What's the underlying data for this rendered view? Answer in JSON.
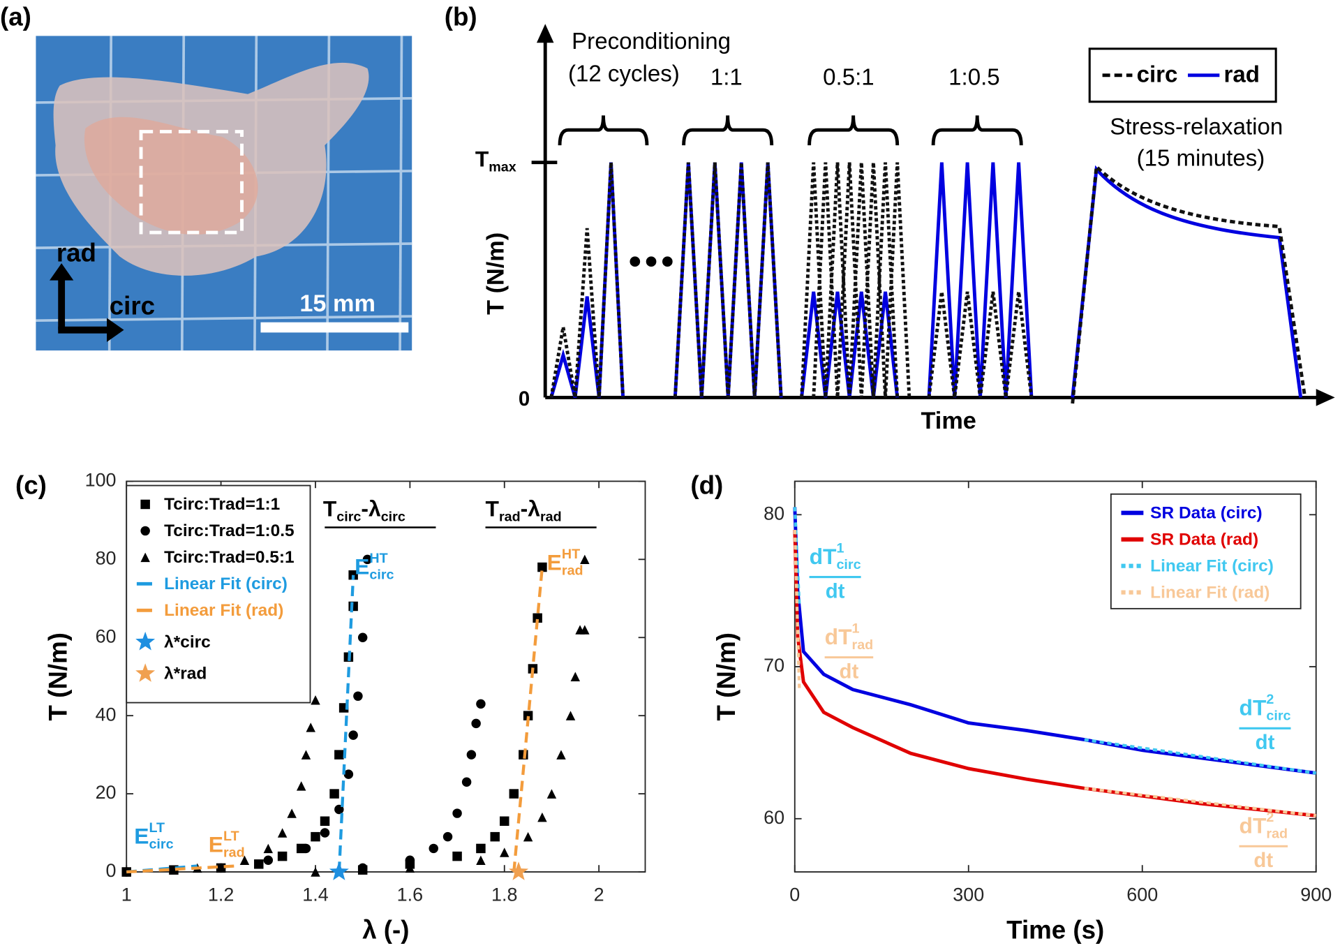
{
  "figure": {
    "a": {
      "label": "(a)",
      "rad": "rad",
      "circ": "circ",
      "scale": "15 mm"
    },
    "b": {
      "label": "(b)",
      "y_label": "T (N/m)",
      "x_label": "Time",
      "y_max": [
        [
          "T",
          ""
        ],
        [
          "max",
          "sub"
        ]
      ],
      "zero": "0",
      "groups": [
        [
          "Preconditioning",
          "(12 cycles)"
        ],
        [
          "1:1"
        ],
        [
          "0.5:1"
        ],
        [
          "1:0.5"
        ],
        [
          "Stress-relaxation",
          "(15 minutes)"
        ]
      ],
      "legend": [
        "circ",
        "rad"
      ]
    }
  },
  "chart_data": [
    {
      "type": "scatter",
      "panel_label": "(c)",
      "x_label": "λ (-)",
      "y_label": "T (N/m)",
      "xlim": [
        1,
        2.098
      ],
      "ylim": [
        0,
        100
      ],
      "xticks": [
        1,
        1.2,
        1.4,
        1.6,
        1.8,
        2
      ],
      "yticks": [
        0,
        20,
        40,
        60,
        80,
        100
      ],
      "series": [
        {
          "name": "Tcirc:Trad=1:1",
          "marker": "square",
          "color": "#000000",
          "x": [
            1.0,
            1.1,
            1.2,
            1.28,
            1.33,
            1.37,
            1.4,
            1.42,
            1.44,
            1.45,
            1.46,
            1.47,
            1.48,
            1.48,
            1.5,
            1.6,
            1.7,
            1.75,
            1.78,
            1.8,
            1.82,
            1.84,
            1.85,
            1.86,
            1.87,
            1.88
          ],
          "values": [
            0,
            0.5,
            1,
            2,
            4,
            6,
            9,
            13,
            20,
            30,
            42,
            55,
            68,
            76,
            0.5,
            2,
            4,
            6,
            9,
            13,
            20,
            30,
            40,
            52,
            65,
            78
          ]
        },
        {
          "name": "Tcirc:Trad=1:0.5",
          "marker": "circle",
          "color": "#000000",
          "x": [
            1.0,
            1.2,
            1.3,
            1.38,
            1.42,
            1.45,
            1.47,
            1.48,
            1.49,
            1.5,
            1.51,
            1.5,
            1.6,
            1.65,
            1.68,
            1.7,
            1.72,
            1.73,
            1.74,
            1.75
          ],
          "values": [
            0,
            1,
            3,
            6,
            10,
            16,
            25,
            35,
            45,
            60,
            80,
            1,
            3,
            6,
            9,
            15,
            23,
            30,
            38,
            43
          ]
        },
        {
          "name": "Tcirc:Trad=0.5:1",
          "marker": "triangle",
          "color": "#000000",
          "x": [
            1.0,
            1.15,
            1.25,
            1.3,
            1.33,
            1.35,
            1.37,
            1.38,
            1.39,
            1.4,
            1.4,
            1.6,
            1.75,
            1.8,
            1.85,
            1.88,
            1.9,
            1.92,
            1.94,
            1.95,
            1.96,
            1.97,
            1.97
          ],
          "values": [
            0,
            1,
            3,
            6,
            10,
            15,
            22,
            30,
            37,
            44,
            0,
            1,
            3,
            5,
            9,
            14,
            20,
            30,
            40,
            50,
            62,
            80,
            62
          ]
        },
        {
          "name": "Linear Fit (circ)",
          "line_style": "dashed",
          "color": "#1e9be0",
          "x": [
            1,
            1.15,
            null,
            1.45,
            1.48
          ],
          "values": [
            0,
            1.5,
            null,
            0,
            76
          ]
        },
        {
          "name": "Linear Fit (rad)",
          "line_style": "dashed",
          "color": "#f39c3c",
          "x": [
            1,
            1.23,
            null,
            1.82,
            1.88
          ],
          "values": [
            0,
            1.5,
            null,
            0,
            78
          ]
        },
        {
          "name": "λ*circ",
          "marker": "star",
          "color": "#1e8fe0",
          "x": [
            1.45
          ],
          "values": [
            0
          ]
        },
        {
          "name": "λ*rad",
          "marker": "star",
          "color": "#f0a050",
          "x": [
            1.83
          ],
          "values": [
            0
          ]
        }
      ],
      "annotations": [
        {
          "parts": [
            [
              "T",
              ""
            ],
            [
              "circ",
              "sub"
            ],
            [
              "-λ",
              ""
            ],
            [
              "circ",
              "sub"
            ]
          ],
          "color": "#000000"
        },
        {
          "parts": [
            [
              "T",
              ""
            ],
            [
              "rad",
              "sub"
            ],
            [
              "-λ",
              ""
            ],
            [
              "rad",
              "sub"
            ]
          ],
          "color": "#000000"
        },
        {
          "parts": [
            [
              "E",
              ""
            ],
            [
              "HT",
              "sup"
            ],
            [
              "circ",
              "sub"
            ]
          ],
          "color": "#1e9be0"
        },
        {
          "parts": [
            [
              "E",
              ""
            ],
            [
              "HT",
              "sup"
            ],
            [
              "rad",
              "sub"
            ]
          ],
          "color": "#f39c3c"
        },
        {
          "parts": [
            [
              "E",
              ""
            ],
            [
              "LT",
              "sup"
            ],
            [
              "circ",
              "sub"
            ]
          ],
          "color": "#1e9be0"
        },
        {
          "parts": [
            [
              "E",
              ""
            ],
            [
              "LT",
              "sup"
            ],
            [
              "rad",
              "sub"
            ]
          ],
          "color": "#f39c3c"
        }
      ]
    },
    {
      "type": "line",
      "panel_label": "(d)",
      "x_label": "Time (s)",
      "y_label": "T (N/m)",
      "xlim": [
        0,
        900
      ],
      "ylim": [
        56.5,
        82.2
      ],
      "xticks": [
        0,
        300,
        600,
        900
      ],
      "yticks": [
        60,
        70,
        80
      ],
      "series": [
        {
          "name": "SR Data (circ)",
          "line_style": "solid",
          "color": "#0000e0",
          "x": [
            0,
            5,
            15,
            50,
            100,
            200,
            300,
            400,
            500,
            600,
            700,
            800,
            900
          ],
          "values": [
            80.5,
            75,
            71,
            69.5,
            68.5,
            67.5,
            66.3,
            65.8,
            65.2,
            64.5,
            64,
            63.5,
            63
          ]
        },
        {
          "name": "SR Data (rad)",
          "line_style": "solid",
          "color": "#e00000",
          "x": [
            0,
            5,
            15,
            50,
            100,
            200,
            300,
            400,
            500,
            600,
            700,
            800,
            900
          ],
          "values": [
            79,
            72,
            69,
            67,
            66,
            64.3,
            63.3,
            62.6,
            62,
            61.5,
            61,
            60.6,
            60.2
          ]
        },
        {
          "name": "Linear Fit (circ)",
          "line_style": "dotted",
          "color": "#40c8f0",
          "x": [
            0,
            8,
            null,
            500,
            900
          ],
          "values": [
            80.5,
            74,
            null,
            65.2,
            63
          ]
        },
        {
          "name": "Linear Fit (rad)",
          "line_style": "dotted",
          "color": "#f8c898",
          "x": [
            0,
            8,
            null,
            500,
            900
          ],
          "values": [
            79,
            68.5,
            null,
            62,
            60.2
          ]
        }
      ],
      "annotations": [
        {
          "parts": [
            [
              "dT",
              ""
            ],
            [
              "1",
              "sup"
            ],
            [
              "circ",
              "sub"
            ]
          ],
          "den": "dt",
          "color": "#40c8f0"
        },
        {
          "parts": [
            [
              "dT",
              ""
            ],
            [
              "1",
              "sup"
            ],
            [
              "rad",
              "sub"
            ]
          ],
          "den": "dt",
          "color": "#f8c898"
        },
        {
          "parts": [
            [
              "dT",
              ""
            ],
            [
              "2",
              "sup"
            ],
            [
              "circ",
              "sub"
            ]
          ],
          "den": "dt",
          "color": "#40c8f0"
        },
        {
          "parts": [
            [
              "dT",
              ""
            ],
            [
              "2",
              "sup"
            ],
            [
              "rad",
              "sub"
            ]
          ],
          "den": "dt",
          "color": "#f8c898"
        }
      ]
    }
  ]
}
